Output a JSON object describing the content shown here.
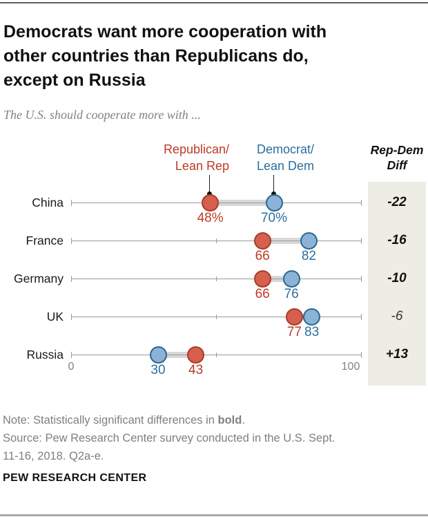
{
  "header": {
    "title_lines": [
      "Democrats want more cooperation with",
      "other countries than Republicans do,",
      "except on Russia"
    ],
    "subtitle": "The U.S. should cooperate more with ..."
  },
  "legend": {
    "rep_lines": [
      "Republican/",
      "Lean Rep"
    ],
    "dem_lines": [
      "Democrat/",
      "Lean Dem"
    ],
    "diff_header_lines": [
      "Rep-Dem",
      "Diff"
    ]
  },
  "colors": {
    "red_text": "#bf3927",
    "red_fill": "#d6604d",
    "red_stroke": "#a83c28",
    "blue_text": "#2b6e9e",
    "blue_fill": "#8cb3d6",
    "blue_stroke": "#2a6790",
    "axis_color": "#999999",
    "band_color": "#d8d8d8",
    "panel_bg": "#eeede3",
    "title_color": "#111111",
    "subtitle_color": "#828282",
    "note_color": "#7f7f7f",
    "rule_top": "#5f5f5f",
    "rule_bottom": "#a9a9a9"
  },
  "chart_data": {
    "type": "dumbbell",
    "title": "Democrats want more cooperation with other countries than Republicans do, except on Russia",
    "subtitle": "The U.S. should cooperate more with ...",
    "axis": {
      "min": 0,
      "max": 100,
      "tick_labels": [
        "0",
        "100"
      ],
      "mid_tick": 50
    },
    "series_names": [
      "Republican/Lean Rep",
      "Democrat/Lean Dem"
    ],
    "diff_column_header": "Rep-Dem Diff",
    "rows": [
      {
        "country": "China",
        "rep": 48,
        "dem": 70,
        "rep_label": "48%",
        "dem_label": "70%",
        "diff": "-22",
        "significant": true
      },
      {
        "country": "France",
        "rep": 66,
        "dem": 82,
        "rep_label": "66",
        "dem_label": "82",
        "diff": "-16",
        "significant": true
      },
      {
        "country": "Germany",
        "rep": 66,
        "dem": 76,
        "rep_label": "66",
        "dem_label": "76",
        "diff": "-10",
        "significant": true
      },
      {
        "country": "UK",
        "rep": 77,
        "dem": 83,
        "rep_label": "77",
        "dem_label": "83",
        "diff": "-6",
        "significant": false
      },
      {
        "country": "Russia",
        "rep": 43,
        "dem": 30,
        "rep_label": "43",
        "dem_label": "30",
        "diff": "+13",
        "significant": true
      }
    ]
  },
  "footer": {
    "note_prefix": "Note: Statistically significant differences in ",
    "note_bold": "bold",
    "note_suffix": ".",
    "source_line1": "Source: Pew Research Center survey conducted in the U.S. Sept.",
    "source_line2": "11-16, 2018. Q2a-e.",
    "brand": "PEW RESEARCH CENTER"
  }
}
